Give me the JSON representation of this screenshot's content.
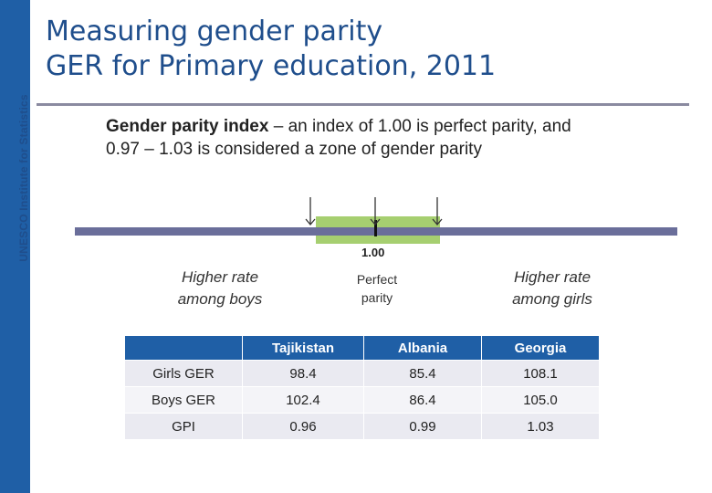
{
  "sidebar": {
    "label": "UNESCO Institute for Statistics"
  },
  "title": {
    "line1": "Measuring gender parity",
    "line2": "GER for Primary education, 2011"
  },
  "definition": {
    "term": "Gender parity index",
    "line1_rest": " – an index of 1.00 is perfect parity, and",
    "line2": "0.97 – 1.03 is considered a zone of gender parity"
  },
  "scale": {
    "tick_value": "1.00",
    "left_label": [
      "Higher rate",
      "among boys"
    ],
    "center_label": [
      "Perfect",
      "parity"
    ],
    "right_label": [
      "Higher rate",
      "among girls"
    ],
    "zone_color": "#a6cf70",
    "bar_color": "#6a6e9a"
  },
  "table": {
    "columns": [
      "",
      "Tajikistan",
      "Albania",
      "Georgia"
    ],
    "rows": [
      {
        "label": "Girls GER",
        "values": [
          "98.4",
          "85.4",
          "108.1"
        ]
      },
      {
        "label": "Boys GER",
        "values": [
          "102.4",
          "86.4",
          "105.0"
        ]
      },
      {
        "label": "GPI",
        "values": [
          "0.96",
          "0.99",
          "1.03"
        ]
      }
    ],
    "header_color": "#1f5fa6"
  }
}
